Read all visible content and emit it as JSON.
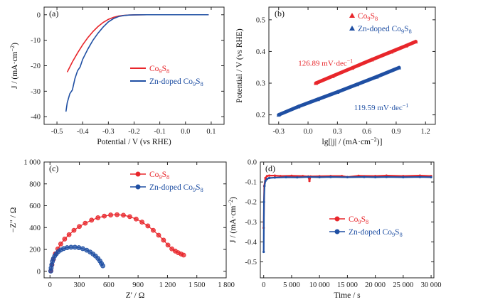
{
  "colors": {
    "red": "#e8262b",
    "blue": "#1f4fa3",
    "axis": "#222222"
  },
  "chart_data": [
    {
      "panel": "(a)",
      "type": "line",
      "xlabel": "Potential / V (vs RHE)",
      "ylabel": "J / (mA·cm⁻²)",
      "xlim": [
        -0.55,
        0.15
      ],
      "ylim": [
        -43,
        3
      ],
      "xticks": [
        -0.5,
        -0.4,
        -0.3,
        -0.2,
        -0.1,
        0.0,
        0.1
      ],
      "xtick_labels": [
        "-0.5",
        "-0.4",
        "-0.3",
        "-0.2",
        "-0.1",
        "0.0",
        "0.1"
      ],
      "yticks": [
        0,
        -10,
        -20,
        -30,
        -40
      ],
      "ytick_labels": [
        "0",
        "-10",
        "-20",
        "-30",
        "-40"
      ],
      "legend_position": "center-right",
      "series": [
        {
          "name": "Co₉S₈",
          "color": "#e8262b",
          "x": [
            -0.46,
            -0.44,
            -0.42,
            -0.4,
            -0.38,
            -0.36,
            -0.34,
            -0.32,
            -0.3,
            -0.28,
            -0.26,
            -0.24,
            -0.22,
            -0.2,
            -0.15,
            -0.1,
            0.0,
            0.09
          ],
          "y": [
            -22.5,
            -18.5,
            -15.0,
            -11.8,
            -9.0,
            -6.6,
            -4.6,
            -3.0,
            -1.8,
            -1.0,
            -0.5,
            -0.25,
            -0.1,
            -0.05,
            0,
            0,
            0,
            0
          ]
        },
        {
          "name": "Zn-doped Co₉S₈",
          "color": "#1f4fa3",
          "x": [
            -0.465,
            -0.46,
            -0.45,
            -0.44,
            -0.43,
            -0.42,
            -0.41,
            -0.4,
            -0.38,
            -0.36,
            -0.34,
            -0.32,
            -0.3,
            -0.28,
            -0.26,
            -0.24,
            -0.22,
            -0.2,
            -0.15,
            -0.1,
            0.0,
            0.09
          ],
          "y": [
            -38,
            -34.5,
            -31,
            -29.5,
            -25,
            -22,
            -20.5,
            -17.5,
            -13.5,
            -10,
            -7.2,
            -4.8,
            -2.8,
            -1.5,
            -0.7,
            -0.3,
            -0.12,
            -0.05,
            0,
            0,
            0,
            0
          ]
        }
      ]
    },
    {
      "panel": "(b)",
      "type": "line",
      "xlabel": "lg[|j| / (mA·cm⁻²)]",
      "ylabel": "Potential / V (vs RHE)",
      "xlim": [
        -0.4,
        1.3
      ],
      "ylim": [
        0.17,
        0.54
      ],
      "xticks": [
        -0.3,
        0.0,
        0.3,
        0.6,
        0.9,
        1.2
      ],
      "xtick_labels": [
        "-0.3",
        "0.0",
        "0.3",
        "0.6",
        "0.9",
        "1.2"
      ],
      "yticks": [
        0.2,
        0.3,
        0.4,
        0.5
      ],
      "ytick_labels": [
        "0.2",
        "0.3",
        "0.4",
        "0.5"
      ],
      "legend_position": "top-right",
      "annotations": [
        {
          "text": "126.89 mV·dec⁻¹",
          "color": "#e8262b",
          "x": -0.1,
          "y": 0.355
        },
        {
          "text": "119.59 mV·dec⁻¹",
          "color": "#1f4fa3",
          "x": 0.47,
          "y": 0.215
        }
      ],
      "series": [
        {
          "name": "Co₉S₈",
          "color": "#e8262b",
          "marker": "triangle-up",
          "x": [
            0.08,
            0.25,
            0.45,
            0.65,
            0.85,
            1.0,
            1.1
          ],
          "y": [
            0.3,
            0.322,
            0.348,
            0.374,
            0.399,
            0.418,
            0.431
          ]
        },
        {
          "name": "Zn-doped Co₉S₈",
          "color": "#1f4fa3",
          "marker": "triangle-up",
          "x": [
            -0.3,
            -0.1,
            0.1,
            0.3,
            0.5,
            0.7,
            0.93
          ],
          "y": [
            0.2,
            0.226,
            0.249,
            0.272,
            0.296,
            0.32,
            0.349
          ]
        }
      ]
    },
    {
      "panel": "(c)",
      "type": "scatter",
      "xlabel": "Z' / Ω",
      "ylabel": "−Z\" / Ω",
      "xlim": [
        -60,
        1800
      ],
      "ylim": [
        -60,
        1000
      ],
      "xticks": [
        0,
        300,
        600,
        900,
        1200,
        1500,
        1800
      ],
      "xtick_labels": [
        "0",
        "300",
        "600",
        "900",
        "1 200",
        "1 500",
        "1 800"
      ],
      "yticks": [
        0,
        200,
        400,
        600,
        800,
        1000
      ],
      "ytick_labels": [
        "0",
        "200",
        "400",
        "600",
        "800",
        "1 000"
      ],
      "legend_position": "top-right",
      "series": [
        {
          "name": "Co₉S₈",
          "color": "#e8262b",
          "marker": "circle",
          "arc": {
            "start": 10,
            "end": 1300,
            "r_scale": 0.82
          },
          "x": [
            10,
            20,
            35,
            55,
            80,
            110,
            150,
            195,
            245,
            300,
            360,
            425,
            490,
            555,
            620,
            685,
            750,
            815,
            880,
            940,
            1000,
            1055,
            1110,
            1160,
            1205,
            1245,
            1280,
            1310,
            1340,
            1365
          ],
          "y": [
            5,
            60,
            110,
            160,
            205,
            250,
            295,
            335,
            375,
            410,
            440,
            468,
            490,
            505,
            515,
            518,
            513,
            500,
            478,
            450,
            415,
            375,
            330,
            285,
            240,
            205,
            185,
            170,
            158,
            148
          ]
        },
        {
          "name": "Zn-doped Co₉S₈",
          "color": "#1f4fa3",
          "marker": "circle",
          "x": [
            8,
            12,
            18,
            25,
            35,
            48,
            65,
            85,
            110,
            140,
            175,
            215,
            255,
            295,
            335,
            375,
            410,
            440,
            465,
            490,
            510,
            525,
            540
          ],
          "y": [
            2,
            30,
            60,
            90,
            115,
            140,
            160,
            180,
            195,
            208,
            216,
            220,
            220,
            216,
            207,
            193,
            176,
            158,
            140,
            118,
            95,
            72,
            50
          ]
        }
      ]
    },
    {
      "panel": "(d)",
      "type": "line",
      "xlabel": "Time / s",
      "ylabel": "J / (mA·cm⁻²)",
      "xlim": [
        -600,
        30500
      ],
      "ylim": [
        -0.58,
        0.0
      ],
      "xticks": [
        0,
        5000,
        10000,
        15000,
        20000,
        25000,
        30000
      ],
      "xtick_labels": [
        "0",
        "5 000",
        "10 000",
        "15 000",
        "20 000",
        "25 000",
        "30 000"
      ],
      "yticks": [
        0.0,
        -0.1,
        -0.2,
        -0.3,
        -0.4,
        -0.5
      ],
      "ytick_labels": [
        "0.0",
        "-0.1",
        "-0.2",
        "-0.3",
        "-0.4",
        "-0.5"
      ],
      "legend_position": "center",
      "series": [
        {
          "name": "Co₉S₈",
          "color": "#e8262b",
          "marker": "circle",
          "x": [
            0,
            100,
            300,
            600,
            1000,
            2000,
            3000,
            5000,
            7000,
            8000,
            8200,
            8400,
            10000,
            12000,
            14000,
            15000,
            17000,
            20000,
            22000,
            25000,
            28000,
            30000
          ],
          "y": [
            -0.33,
            -0.12,
            -0.08,
            -0.07,
            -0.068,
            -0.068,
            -0.07,
            -0.069,
            -0.07,
            -0.072,
            -0.095,
            -0.072,
            -0.071,
            -0.07,
            -0.07,
            -0.075,
            -0.069,
            -0.07,
            -0.068,
            -0.07,
            -0.068,
            -0.07
          ]
        },
        {
          "name": "Zn-doped Co₉S₈",
          "color": "#1f4fa3",
          "marker": "circle",
          "x": [
            0,
            50,
            150,
            300,
            600,
            1000,
            2000,
            4000,
            6000,
            8000,
            10000,
            12000,
            15000,
            18000,
            20000,
            22000,
            25000,
            28000,
            30000
          ],
          "y": [
            -0.45,
            -0.2,
            -0.12,
            -0.095,
            -0.085,
            -0.08,
            -0.078,
            -0.076,
            -0.077,
            -0.075,
            -0.076,
            -0.075,
            -0.076,
            -0.075,
            -0.076,
            -0.075,
            -0.076,
            -0.075,
            -0.076
          ]
        }
      ]
    }
  ]
}
